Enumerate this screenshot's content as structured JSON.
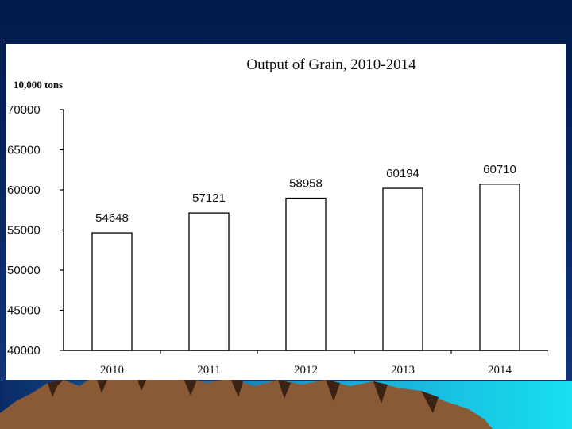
{
  "chart_data": {
    "type": "bar",
    "title": "Output of Grain, 2010-2014",
    "unit_label": "10,000 tons",
    "categories": [
      "2010",
      "2011",
      "2012",
      "2013",
      "2014"
    ],
    "values": [
      54648,
      57121,
      58958,
      60194,
      60710
    ],
    "data_labels": [
      "54648",
      "57121",
      "58958",
      "60194",
      "60710"
    ],
    "ylim": [
      40000,
      70000
    ],
    "yticks": [
      40000,
      45000,
      50000,
      55000,
      60000,
      65000,
      70000
    ],
    "ytick_labels": [
      "40000",
      "45000",
      "50000",
      "55000",
      "60000",
      "65000",
      "70000"
    ],
    "grid": false,
    "legend": "none",
    "colors": {
      "bar_fill": "#ffffff",
      "bar_stroke": "#000000",
      "axis": "#000000"
    }
  },
  "theme": {
    "slide_background": "#0a2a66",
    "mountain": "#8a5a36",
    "mountain_dark": "#3a2214",
    "sky_glow": "#18e0f0"
  }
}
